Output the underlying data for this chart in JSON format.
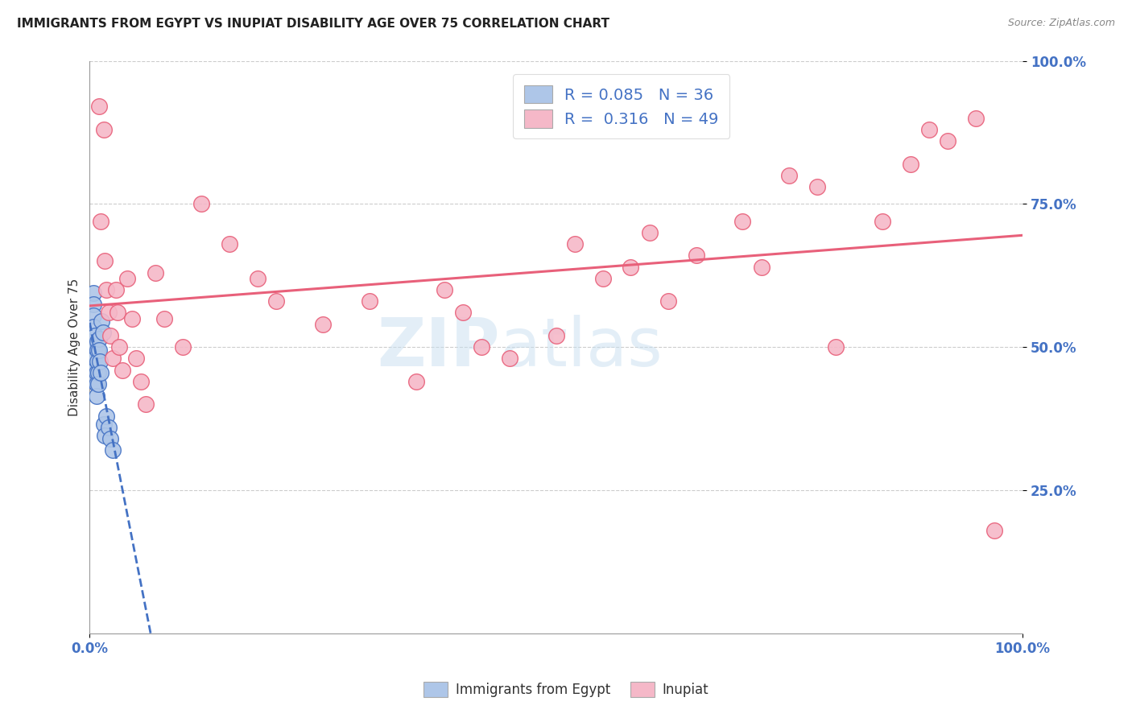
{
  "title": "IMMIGRANTS FROM EGYPT VS INUPIAT DISABILITY AGE OVER 75 CORRELATION CHART",
  "source": "Source: ZipAtlas.com",
  "ylabel": "Disability Age Over 75",
  "xlim": [
    0,
    1
  ],
  "ylim": [
    0,
    1
  ],
  "xticks": [
    0.0,
    1.0
  ],
  "xticklabels": [
    "0.0%",
    "100.0%"
  ],
  "yticks": [
    0.25,
    0.5,
    0.75,
    1.0
  ],
  "yticklabels": [
    "25.0%",
    "50.0%",
    "75.0%",
    "100.0%"
  ],
  "blue_label": "Immigrants from Egypt",
  "pink_label": "Inupiat",
  "blue_R": 0.085,
  "blue_N": 36,
  "pink_R": 0.316,
  "pink_N": 49,
  "blue_color": "#aec6e8",
  "pink_color": "#f5b8c8",
  "blue_line_color": "#4472c4",
  "pink_line_color": "#e8607a",
  "tick_color": "#4472c4",
  "watermark1": "ZIP",
  "watermark2": "atlas",
  "blue_x": [
    0.002,
    0.002,
    0.003,
    0.003,
    0.003,
    0.004,
    0.004,
    0.004,
    0.004,
    0.005,
    0.005,
    0.005,
    0.005,
    0.006,
    0.006,
    0.006,
    0.007,
    0.007,
    0.007,
    0.008,
    0.008,
    0.008,
    0.009,
    0.009,
    0.01,
    0.01,
    0.011,
    0.012,
    0.013,
    0.014,
    0.015,
    0.016,
    0.018,
    0.02,
    0.022,
    0.025
  ],
  "blue_y": [
    0.495,
    0.475,
    0.52,
    0.5,
    0.48,
    0.595,
    0.575,
    0.555,
    0.535,
    0.5,
    0.48,
    0.46,
    0.44,
    0.52,
    0.5,
    0.48,
    0.455,
    0.435,
    0.415,
    0.51,
    0.495,
    0.475,
    0.455,
    0.435,
    0.515,
    0.495,
    0.475,
    0.455,
    0.545,
    0.525,
    0.365,
    0.345,
    0.38,
    0.36,
    0.34,
    0.32
  ],
  "pink_x": [
    0.01,
    0.012,
    0.015,
    0.016,
    0.018,
    0.02,
    0.022,
    0.025,
    0.028,
    0.03,
    0.032,
    0.035,
    0.04,
    0.045,
    0.05,
    0.055,
    0.06,
    0.07,
    0.08,
    0.1,
    0.12,
    0.15,
    0.18,
    0.2,
    0.25,
    0.3,
    0.35,
    0.38,
    0.4,
    0.42,
    0.45,
    0.5,
    0.52,
    0.55,
    0.58,
    0.6,
    0.62,
    0.65,
    0.7,
    0.72,
    0.75,
    0.78,
    0.8,
    0.85,
    0.88,
    0.9,
    0.92,
    0.95,
    0.97
  ],
  "pink_y": [
    0.92,
    0.72,
    0.88,
    0.65,
    0.6,
    0.56,
    0.52,
    0.48,
    0.6,
    0.56,
    0.5,
    0.46,
    0.62,
    0.55,
    0.48,
    0.44,
    0.4,
    0.63,
    0.55,
    0.5,
    0.75,
    0.68,
    0.62,
    0.58,
    0.54,
    0.58,
    0.44,
    0.6,
    0.56,
    0.5,
    0.48,
    0.52,
    0.68,
    0.62,
    0.64,
    0.7,
    0.58,
    0.66,
    0.72,
    0.64,
    0.8,
    0.78,
    0.5,
    0.72,
    0.82,
    0.88,
    0.86,
    0.9,
    0.18
  ]
}
